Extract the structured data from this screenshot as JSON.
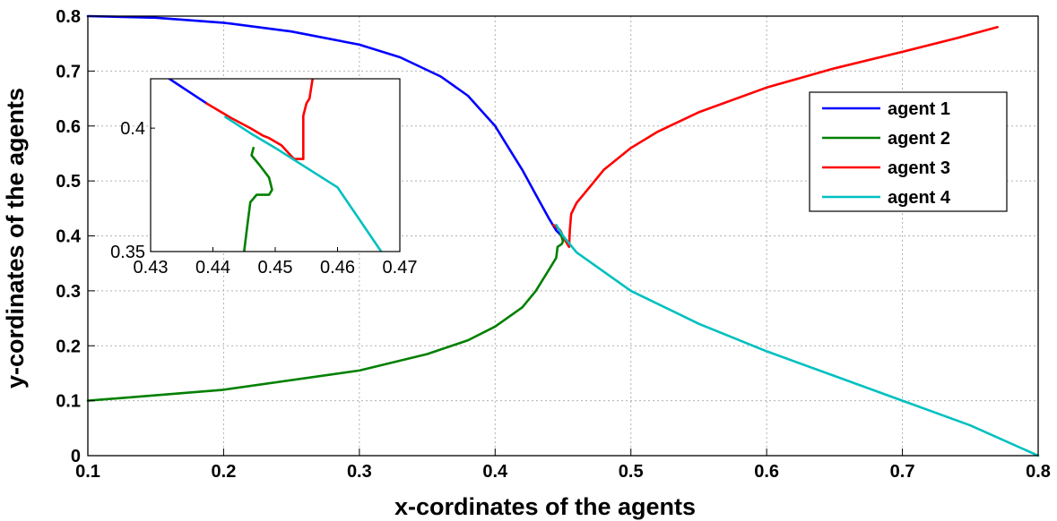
{
  "chart_data": {
    "type": "line",
    "title": "",
    "xlabel": "x-cordinates of the agents",
    "ylabel": "y-cordinates of the agents",
    "xlim": [
      0.1,
      0.8
    ],
    "ylim": [
      0,
      0.8
    ],
    "xticks": [
      "0.1",
      "0.2",
      "0.3",
      "0.4",
      "0.5",
      "0.6",
      "0.7",
      "0.8"
    ],
    "yticks": [
      "0",
      "0.1",
      "0.2",
      "0.3",
      "0.4",
      "0.5",
      "0.6",
      "0.7",
      "0.8"
    ],
    "grid": true,
    "legend_position": "top-right",
    "series": [
      {
        "name": "agent 1",
        "color": "#0000ff",
        "points": [
          [
            0.1,
            0.8
          ],
          [
            0.15,
            0.797
          ],
          [
            0.2,
            0.788
          ],
          [
            0.25,
            0.772
          ],
          [
            0.3,
            0.748
          ],
          [
            0.33,
            0.725
          ],
          [
            0.36,
            0.69
          ],
          [
            0.38,
            0.655
          ],
          [
            0.4,
            0.6
          ],
          [
            0.41,
            0.56
          ],
          [
            0.42,
            0.52
          ],
          [
            0.43,
            0.475
          ],
          [
            0.44,
            0.43
          ],
          [
            0.445,
            0.41
          ],
          [
            0.449,
            0.4
          ]
        ]
      },
      {
        "name": "agent 2",
        "color": "#008000",
        "points": [
          [
            0.1,
            0.1
          ],
          [
            0.2,
            0.12
          ],
          [
            0.3,
            0.155
          ],
          [
            0.35,
            0.185
          ],
          [
            0.38,
            0.21
          ],
          [
            0.4,
            0.235
          ],
          [
            0.42,
            0.27
          ],
          [
            0.43,
            0.3
          ],
          [
            0.44,
            0.34
          ],
          [
            0.445,
            0.36
          ],
          [
            0.446,
            0.38
          ],
          [
            0.449,
            0.385
          ],
          [
            0.45,
            0.39
          ],
          [
            0.449,
            0.398
          ],
          [
            0.448,
            0.405
          ]
        ]
      },
      {
        "name": "agent 3",
        "color": "#ff0000",
        "points": [
          [
            0.443,
            0.42
          ],
          [
            0.448,
            0.41
          ],
          [
            0.452,
            0.39
          ],
          [
            0.4545,
            0.38
          ],
          [
            0.455,
            0.41
          ],
          [
            0.456,
            0.44
          ],
          [
            0.46,
            0.46
          ],
          [
            0.47,
            0.49
          ],
          [
            0.48,
            0.52
          ],
          [
            0.5,
            0.56
          ],
          [
            0.52,
            0.59
          ],
          [
            0.55,
            0.625
          ],
          [
            0.6,
            0.67
          ],
          [
            0.65,
            0.705
          ],
          [
            0.7,
            0.735
          ],
          [
            0.74,
            0.76
          ],
          [
            0.77,
            0.78
          ]
        ]
      },
      {
        "name": "agent 4",
        "color": "#00c0c0",
        "points": [
          [
            0.445,
            0.42
          ],
          [
            0.45,
            0.4
          ],
          [
            0.455,
            0.385
          ],
          [
            0.46,
            0.37
          ],
          [
            0.48,
            0.335
          ],
          [
            0.5,
            0.3
          ],
          [
            0.55,
            0.24
          ],
          [
            0.6,
            0.19
          ],
          [
            0.65,
            0.145
          ],
          [
            0.7,
            0.1
          ],
          [
            0.75,
            0.055
          ],
          [
            0.8,
            0.0
          ]
        ]
      }
    ],
    "inset": {
      "xlim": [
        0.43,
        0.47
      ],
      "ylim": [
        0.35,
        0.42
      ],
      "xticks": [
        "0.43",
        "0.44",
        "0.45",
        "0.46",
        "0.47"
      ],
      "yticks": [
        "0.35",
        "0.4"
      ],
      "series": [
        {
          "name": "agent 1",
          "color": "#0000ff",
          "points": [
            [
              0.433,
              0.42
            ],
            [
              0.436,
              0.415
            ],
            [
              0.439,
              0.41
            ]
          ]
        },
        {
          "name": "agent 2",
          "color": "#008000",
          "points": [
            [
              0.445,
              0.35
            ],
            [
              0.4455,
              0.36
            ],
            [
              0.446,
              0.37
            ],
            [
              0.447,
              0.373
            ],
            [
              0.449,
              0.373
            ],
            [
              0.4495,
              0.375
            ],
            [
              0.449,
              0.38
            ],
            [
              0.4475,
              0.385
            ],
            [
              0.4462,
              0.389
            ],
            [
              0.4465,
              0.392
            ]
          ]
        },
        {
          "name": "agent 3",
          "color": "#ff0000",
          "points": [
            [
              0.439,
              0.41
            ],
            [
              0.443,
              0.404
            ],
            [
              0.446,
              0.4
            ],
            [
              0.448,
              0.397
            ],
            [
              0.449,
              0.396
            ],
            [
              0.451,
              0.393
            ],
            [
              0.453,
              0.3875
            ],
            [
              0.4545,
              0.3875
            ],
            [
              0.4545,
              0.4
            ],
            [
              0.4545,
              0.405
            ],
            [
              0.455,
              0.41
            ],
            [
              0.4555,
              0.412
            ],
            [
              0.456,
              0.42
            ]
          ]
        },
        {
          "name": "agent 4",
          "color": "#00c0c0",
          "points": [
            [
              0.442,
              0.4045
            ],
            [
              0.446,
              0.398
            ],
            [
              0.45,
              0.392
            ],
            [
              0.455,
              0.384
            ],
            [
              0.46,
              0.376
            ],
            [
              0.467,
              0.35
            ]
          ]
        }
      ]
    }
  }
}
